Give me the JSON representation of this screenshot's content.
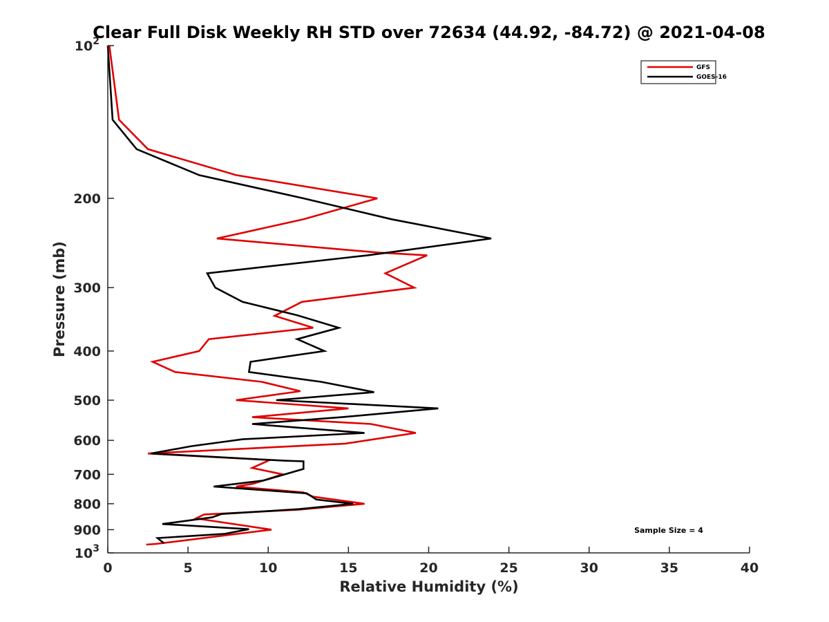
{
  "chart_data": {
    "type": "line",
    "title": "Clear Full Disk Weekly RH STD over 72634 (44.92, -84.72) @ 2021-04-08",
    "xlabel": "Relative Humidity (%)",
    "ylabel": "Pressure (mb)",
    "xlim": [
      0,
      40
    ],
    "ylim": [
      100,
      1000
    ],
    "yscale": "log",
    "y_reversed": true,
    "grid": false,
    "legend_position": "top-right",
    "x_ticks": [
      0,
      5,
      10,
      15,
      20,
      25,
      30,
      35,
      40
    ],
    "x_tick_labels": [
      "0",
      "5",
      "10",
      "15",
      "20",
      "25",
      "30",
      "35",
      "40"
    ],
    "y_ticks": [
      100,
      200,
      300,
      400,
      500,
      600,
      700,
      800,
      900,
      1000
    ],
    "y_tick_labels": [
      {
        "base": "10",
        "exp": "2"
      },
      {
        "base": "200",
        "exp": ""
      },
      {
        "base": "300",
        "exp": ""
      },
      {
        "base": "400",
        "exp": ""
      },
      {
        "base": "500",
        "exp": ""
      },
      {
        "base": "600",
        "exp": ""
      },
      {
        "base": "700",
        "exp": ""
      },
      {
        "base": "800",
        "exp": ""
      },
      {
        "base": "900",
        "exp": ""
      },
      {
        "base": "10",
        "exp": "3"
      }
    ],
    "annotations": [
      {
        "text": "Sample Size = 4",
        "position": "bottom-right"
      }
    ],
    "series": [
      {
        "name": "GFS",
        "color": "#e00000",
        "points": [
          [
            0.1,
            100
          ],
          [
            0.7,
            140
          ],
          [
            2.5,
            160
          ],
          [
            8.0,
            180
          ],
          [
            16.8,
            200
          ],
          [
            12.2,
            220
          ],
          [
            6.8,
            240
          ],
          [
            16.9,
            256
          ],
          [
            19.9,
            259
          ],
          [
            17.3,
            281
          ],
          [
            19.1,
            300
          ],
          [
            12.1,
            320
          ],
          [
            10.4,
            341
          ],
          [
            12.8,
            360
          ],
          [
            6.3,
            379
          ],
          [
            5.7,
            400
          ],
          [
            2.8,
            420
          ],
          [
            4.2,
            440
          ],
          [
            9.6,
            460
          ],
          [
            12.0,
            480
          ],
          [
            8.0,
            500
          ],
          [
            15.0,
            519
          ],
          [
            9.0,
            540
          ],
          [
            16.4,
            557
          ],
          [
            19.2,
            580
          ],
          [
            14.8,
            609
          ],
          [
            2.5,
            637
          ],
          [
            10.1,
            656
          ],
          [
            9.0,
            680
          ],
          [
            10.9,
            700
          ],
          [
            9.1,
            730
          ],
          [
            8.0,
            740
          ],
          [
            12.2,
            760
          ],
          [
            12.8,
            775
          ],
          [
            16.0,
            800
          ],
          [
            11.9,
            822
          ],
          [
            6.0,
            840
          ],
          [
            5.5,
            855
          ],
          [
            10.2,
            900
          ],
          [
            3.0,
            960
          ],
          [
            2.4,
            963
          ]
        ]
      },
      {
        "name": "GOES-16",
        "color": "#000000",
        "points": [
          [
            0.0,
            100
          ],
          [
            0.3,
            140
          ],
          [
            1.8,
            160
          ],
          [
            5.7,
            180
          ],
          [
            12.2,
            200
          ],
          [
            17.7,
            220
          ],
          [
            23.9,
            240
          ],
          [
            16.2,
            259
          ],
          [
            6.2,
            281
          ],
          [
            6.7,
            300
          ],
          [
            8.4,
            320
          ],
          [
            11.8,
            340
          ],
          [
            14.4,
            360
          ],
          [
            11.8,
            379
          ],
          [
            13.5,
            400
          ],
          [
            8.9,
            420
          ],
          [
            8.8,
            440
          ],
          [
            13.3,
            460
          ],
          [
            16.6,
            482
          ],
          [
            10.5,
            500
          ],
          [
            20.6,
            519
          ],
          [
            14.6,
            540
          ],
          [
            9.0,
            557
          ],
          [
            16.0,
            580
          ],
          [
            8.4,
            597
          ],
          [
            5.2,
            616
          ],
          [
            2.7,
            637
          ],
          [
            11.0,
            658
          ],
          [
            12.2,
            660
          ],
          [
            12.2,
            683
          ],
          [
            9.7,
            720
          ],
          [
            6.6,
            740
          ],
          [
            12.4,
            763
          ],
          [
            13.0,
            785
          ],
          [
            15.3,
            800
          ],
          [
            11.9,
            820
          ],
          [
            7.1,
            838
          ],
          [
            6.5,
            851
          ],
          [
            3.4,
            877
          ],
          [
            8.8,
            898
          ],
          [
            7.3,
            917
          ],
          [
            3.1,
            935
          ],
          [
            3.5,
            957
          ]
        ]
      }
    ]
  }
}
